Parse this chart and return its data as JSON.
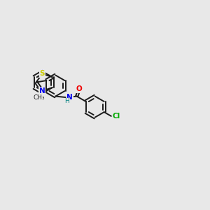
{
  "background_color": "#e8e8e8",
  "bond_color": "#1a1a1a",
  "atom_colors": {
    "S": "#cccc00",
    "N": "#0000ee",
    "O": "#ee0000",
    "Cl": "#00aa00",
    "C": "#1a1a1a",
    "H": "#008080"
  },
  "figsize": [
    3.0,
    3.0
  ],
  "dpi": 100,
  "lw": 1.4,
  "r_hex": 0.52,
  "r_pent_out": 0.5
}
